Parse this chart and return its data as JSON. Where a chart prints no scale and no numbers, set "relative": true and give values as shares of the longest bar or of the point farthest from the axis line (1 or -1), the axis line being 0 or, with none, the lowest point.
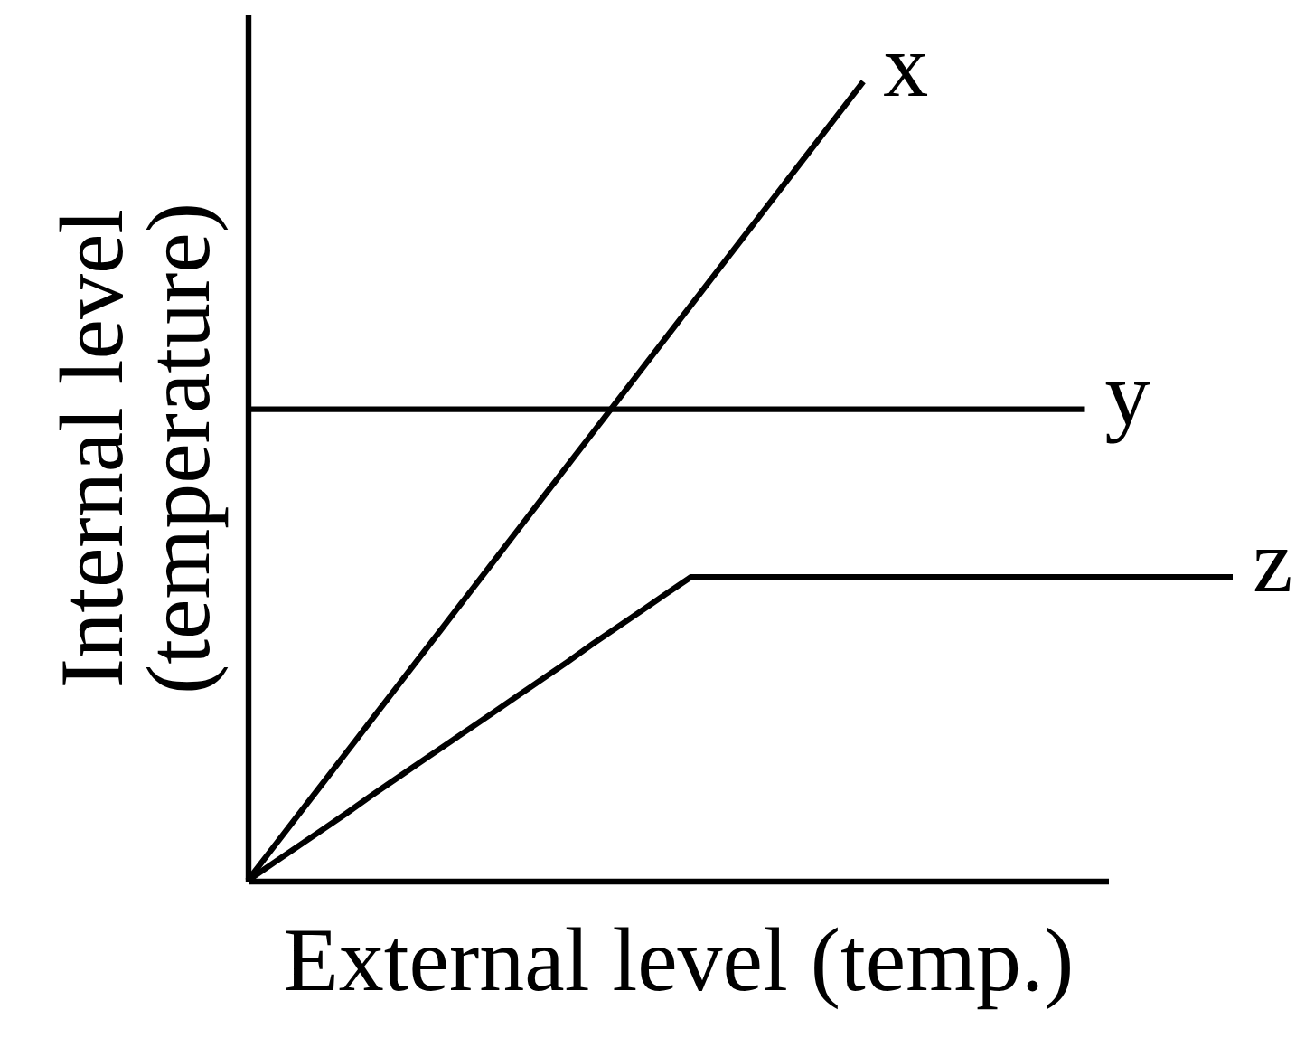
{
  "chart_data": {
    "type": "line",
    "relative": true,
    "tick_labels": false,
    "xlabel": "External level (temp.)",
    "ylabel": "Internal level\n(temperature)",
    "categories": [
      null,
      null,
      null,
      null,
      null,
      null,
      null,
      null,
      null,
      null,
      null,
      null,
      null,
      null,
      null,
      null,
      null,
      null,
      null,
      null,
      null,
      null,
      null,
      null,
      null,
      null,
      null,
      null,
      null,
      null,
      null,
      null,
      null,
      null,
      null,
      null,
      null,
      null,
      null,
      null,
      null
    ],
    "series": [
      {
        "name": "x",
        "color": "#000000",
        "values": [
          0,
          0.04,
          0.08,
          0.12,
          0.16,
          0.2,
          0.24,
          0.28,
          0.32,
          0.36,
          0.4,
          0.44,
          0.48,
          0.52,
          0.56,
          0.6,
          0.64,
          0.68,
          0.72,
          0.76,
          0.8,
          0.84,
          0.88,
          0.92,
          0.96,
          1,
          null,
          null,
          null,
          null,
          null,
          null,
          null,
          null,
          null,
          null,
          null,
          null,
          null,
          null,
          null
        ]
      },
      {
        "name": "y",
        "color": "#000000",
        "values": [
          0.59,
          0.59,
          0.59,
          0.59,
          0.59,
          0.59,
          0.59,
          0.59,
          0.59,
          0.59,
          0.59,
          0.59,
          0.59,
          0.59,
          0.59,
          0.59,
          0.59,
          0.59,
          0.59,
          0.59,
          0.59,
          0.59,
          0.59,
          0.59,
          0.59,
          0.59,
          0.59,
          0.59,
          0.59,
          0.59,
          0.59,
          0.59,
          0.59,
          0.59,
          0.59,
          null,
          null,
          null,
          null,
          null,
          null
        ]
      },
      {
        "name": "z",
        "color": "#000000",
        "values": [
          0,
          0.021,
          0.042,
          0.063,
          0.084,
          0.106,
          0.127,
          0.148,
          0.169,
          0.19,
          0.211,
          0.232,
          0.253,
          0.274,
          0.296,
          0.317,
          0.338,
          0.359,
          0.38,
          0.38,
          0.38,
          0.38,
          0.38,
          0.38,
          0.38,
          0.38,
          0.38,
          0.38,
          0.38,
          0.38,
          0.38,
          0.38,
          0.38,
          0.38,
          0.38,
          0.38,
          0.38,
          0.38,
          0.38,
          0.38,
          0.38
        ]
      }
    ]
  }
}
